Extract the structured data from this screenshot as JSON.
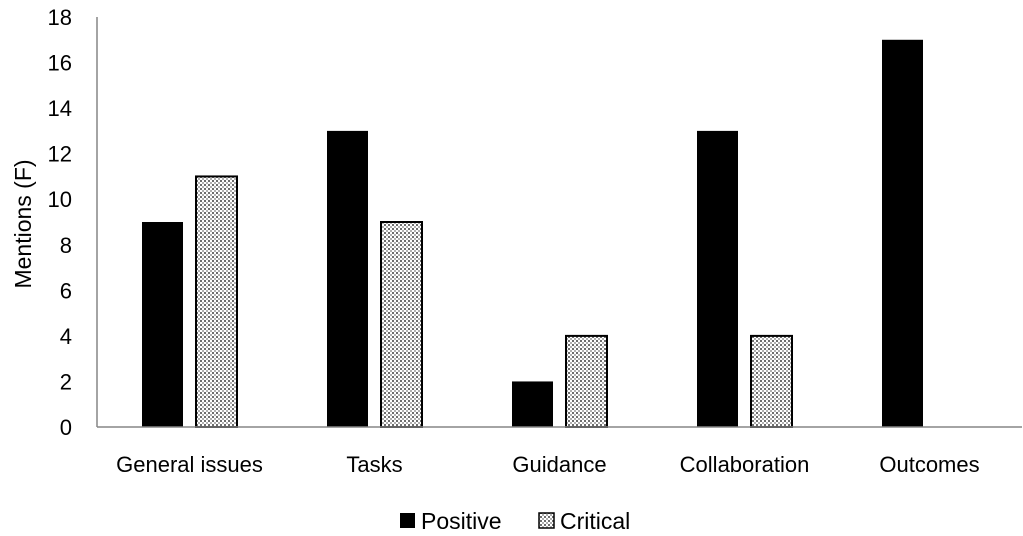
{
  "chart_data": {
    "type": "bar",
    "categories": [
      "General issues",
      "Tasks",
      "Guidance",
      "Collaboration",
      "Outcomes"
    ],
    "series": [
      {
        "name": "Positive",
        "values": [
          9,
          13,
          2,
          13,
          17
        ],
        "color": "#000000",
        "pattern": "solid"
      },
      {
        "name": "Critical",
        "values": [
          11,
          9,
          4,
          4,
          0
        ],
        "color": "#d9d9d9",
        "pattern": "dotted"
      }
    ],
    "title": "",
    "xlabel": "",
    "ylabel": "Mentions (F)",
    "ylim": [
      0,
      18
    ],
    "yticks": [
      "0",
      "2",
      "4",
      "6",
      "8",
      "10",
      "12",
      "14",
      "16",
      "18"
    ],
    "grid": false,
    "legend_position": "bottom"
  }
}
